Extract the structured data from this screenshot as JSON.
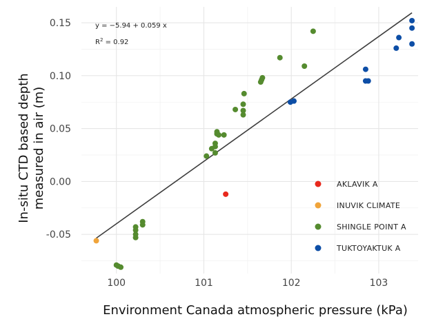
{
  "chart_data": {
    "type": "scatter",
    "xlabel": "Environment Canada atmospheric pressure (kPa)",
    "ylabel_lines": [
      "In-situ CTD based depth",
      "measured in air (m)"
    ],
    "x_ticks": [
      {
        "value": 100,
        "label": "100"
      },
      {
        "value": 101,
        "label": "101"
      },
      {
        "value": 102,
        "label": "102"
      },
      {
        "value": 103,
        "label": "103"
      }
    ],
    "y_ticks": [
      {
        "value": -0.05,
        "label": "-0.05"
      },
      {
        "value": 0.0,
        "label": "0.00"
      },
      {
        "value": 0.05,
        "label": "0.05"
      },
      {
        "value": 0.1,
        "label": "0.10"
      },
      {
        "value": 0.15,
        "label": "0.15"
      }
    ],
    "xlim": [
      99.6,
      103.45
    ],
    "ylim": [
      -0.087,
      0.165
    ],
    "grid": true,
    "legend_position": "bottom-right",
    "equation": {
      "line1": "y = −5.94 + 0.059 x",
      "r2_prefix": "R",
      "r2_sup": "2",
      "r2_suffix": " = 0.92"
    },
    "fit": {
      "intercept": -5.94,
      "slope": 0.059,
      "x_range": [
        99.77,
        103.38
      ]
    },
    "series": [
      {
        "name": "AKLAVIK A",
        "color": "#e8291d",
        "points": [
          [
            101.25,
            -0.012
          ]
        ]
      },
      {
        "name": "INUVIK CLIMATE",
        "color": "#f0a43a",
        "points": [
          [
            99.77,
            -0.056
          ]
        ]
      },
      {
        "name": "SHINGLE POINT A",
        "color": "#558b2f",
        "points": [
          [
            100.0,
            -0.079
          ],
          [
            100.02,
            -0.08
          ],
          [
            100.05,
            -0.081
          ],
          [
            100.22,
            -0.043
          ],
          [
            100.22,
            -0.046
          ],
          [
            100.22,
            -0.05
          ],
          [
            100.22,
            -0.053
          ],
          [
            100.3,
            -0.038
          ],
          [
            100.3,
            -0.041
          ],
          [
            101.03,
            0.024
          ],
          [
            101.09,
            0.031
          ],
          [
            101.13,
            0.027
          ],
          [
            101.13,
            0.033
          ],
          [
            101.13,
            0.036
          ],
          [
            101.15,
            0.045
          ],
          [
            101.15,
            0.047
          ],
          [
            101.17,
            0.044
          ],
          [
            101.23,
            0.044
          ],
          [
            101.36,
            0.068
          ],
          [
            101.45,
            0.063
          ],
          [
            101.45,
            0.067
          ],
          [
            101.45,
            0.073
          ],
          [
            101.46,
            0.083
          ],
          [
            101.65,
            0.094
          ],
          [
            101.66,
            0.096
          ],
          [
            101.67,
            0.098
          ],
          [
            101.87,
            0.117
          ],
          [
            102.15,
            0.109
          ],
          [
            102.25,
            0.142
          ]
        ]
      },
      {
        "name": "TUKTOYAKTUK A",
        "color": "#0d4ea6",
        "points": [
          [
            101.99,
            0.075
          ],
          [
            102.03,
            0.076
          ],
          [
            102.85,
            0.106
          ],
          [
            102.85,
            0.095
          ],
          [
            102.88,
            0.095
          ],
          [
            103.2,
            0.126
          ],
          [
            103.23,
            0.136
          ],
          [
            103.38,
            0.13
          ],
          [
            103.38,
            0.145
          ],
          [
            103.38,
            0.152
          ]
        ]
      }
    ]
  }
}
